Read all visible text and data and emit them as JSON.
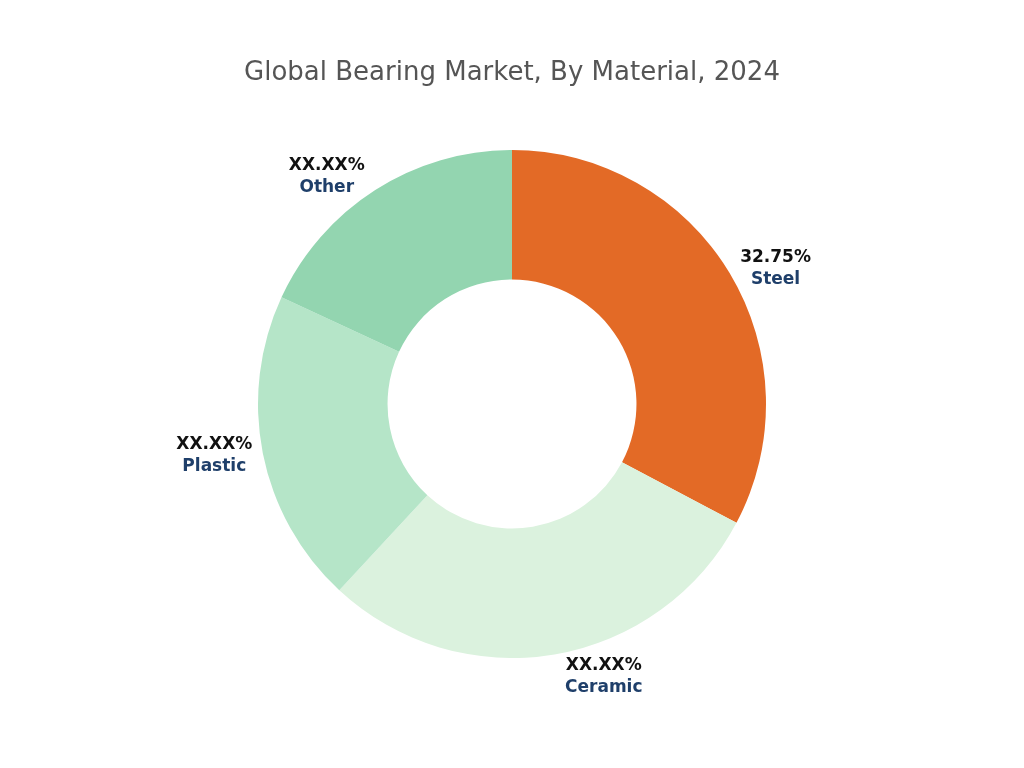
{
  "chart_data": {
    "type": "donut",
    "title": "Global Bearing Market, By Material, 2024",
    "categories": [
      "Steel",
      "Ceramic",
      "Plastic",
      "Other"
    ],
    "values": [
      32.75,
      29.15,
      20.0,
      18.1
    ],
    "colors": [
      "#e36a26",
      "#dbf2de",
      "#b5e5c8",
      "#93d5b0"
    ],
    "value_labels": [
      "32.75%",
      "XX.XX%",
      "XX.XX%",
      "XX.XX%"
    ],
    "legend": false
  }
}
